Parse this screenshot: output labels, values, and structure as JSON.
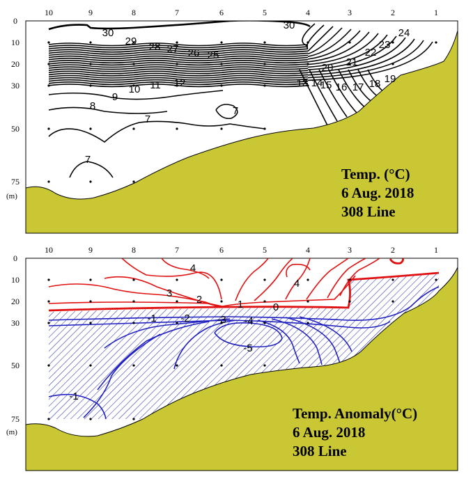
{
  "colors": {
    "seabed": "#c9c834",
    "contour": "#000000",
    "positive": "#e01010",
    "negative": "#2020c0",
    "hatch": "#2830b0"
  },
  "chart_data": [
    {
      "type": "contour",
      "title_lines": [
        "Temp. (°C)",
        "6 Aug. 2018",
        "308 Line"
      ],
      "x_stations": [
        "10",
        "9",
        "8",
        "7",
        "6",
        "5",
        "4",
        "3",
        "2",
        "1"
      ],
      "depth_ticks": [
        "0",
        "10",
        "20",
        "30",
        "50",
        "75"
      ],
      "depth_unit": "(m)",
      "contour_levels": [
        7,
        8,
        9,
        10,
        11,
        12,
        13,
        14,
        15,
        16,
        17,
        18,
        19,
        20,
        21,
        22,
        23,
        24,
        25,
        26,
        27,
        28,
        29,
        30
      ],
      "contour_labels": [
        "30",
        "29",
        "28",
        "27",
        "26",
        "25",
        "30",
        "24",
        "23",
        "22",
        "21",
        "20",
        "19",
        "18",
        "17",
        "16",
        "15",
        "14",
        "13",
        "12",
        "11",
        "10",
        "9",
        "8",
        "7",
        "7",
        "7"
      ]
    },
    {
      "type": "contour",
      "title_lines": [
        "Temp. Anomaly(°C)",
        "6 Aug. 2018",
        "308 Line"
      ],
      "x_stations": [
        "10",
        "9",
        "8",
        "7",
        "6",
        "5",
        "4",
        "3",
        "2",
        "1"
      ],
      "depth_ticks": [
        "0",
        "10",
        "20",
        "30",
        "50",
        "75"
      ],
      "depth_unit": "(m)",
      "positive_labels": [
        "4",
        "4",
        "3",
        "2",
        "1",
        "0"
      ],
      "negative_labels": [
        "-1",
        "-2",
        "-3",
        "-4",
        "-5",
        "-1"
      ]
    }
  ]
}
